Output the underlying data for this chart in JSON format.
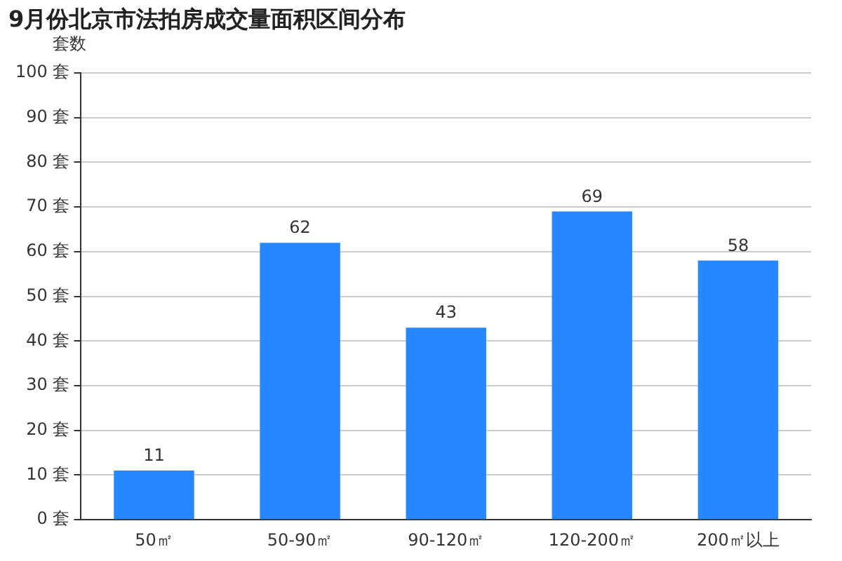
{
  "chart_data": {
    "type": "bar",
    "title": "9月份北京市法拍房成交量面积区间分布",
    "ylabel": "套数",
    "categories": [
      "50㎡",
      "50-90㎡",
      "90-120㎡",
      "120-200㎡",
      "200㎡以上"
    ],
    "values": [
      11,
      62,
      43,
      69,
      58
    ],
    "color": "#2787ff",
    "ylim": [
      0,
      100
    ],
    "yticks": [
      {
        "value": 0,
        "label": "0 套"
      },
      {
        "value": 10,
        "label": "10 套"
      },
      {
        "value": 20,
        "label": "20 套"
      },
      {
        "value": 30,
        "label": "30 套"
      },
      {
        "value": 40,
        "label": "40 套"
      },
      {
        "value": 50,
        "label": "50 套"
      },
      {
        "value": 60,
        "label": "60 套"
      },
      {
        "value": 70,
        "label": "70 套"
      },
      {
        "value": 80,
        "label": "80 套"
      },
      {
        "value": 90,
        "label": "90 套"
      },
      {
        "value": 100,
        "label": "100 套"
      }
    ],
    "grid": "y",
    "data_labels": true,
    "legend": false
  }
}
